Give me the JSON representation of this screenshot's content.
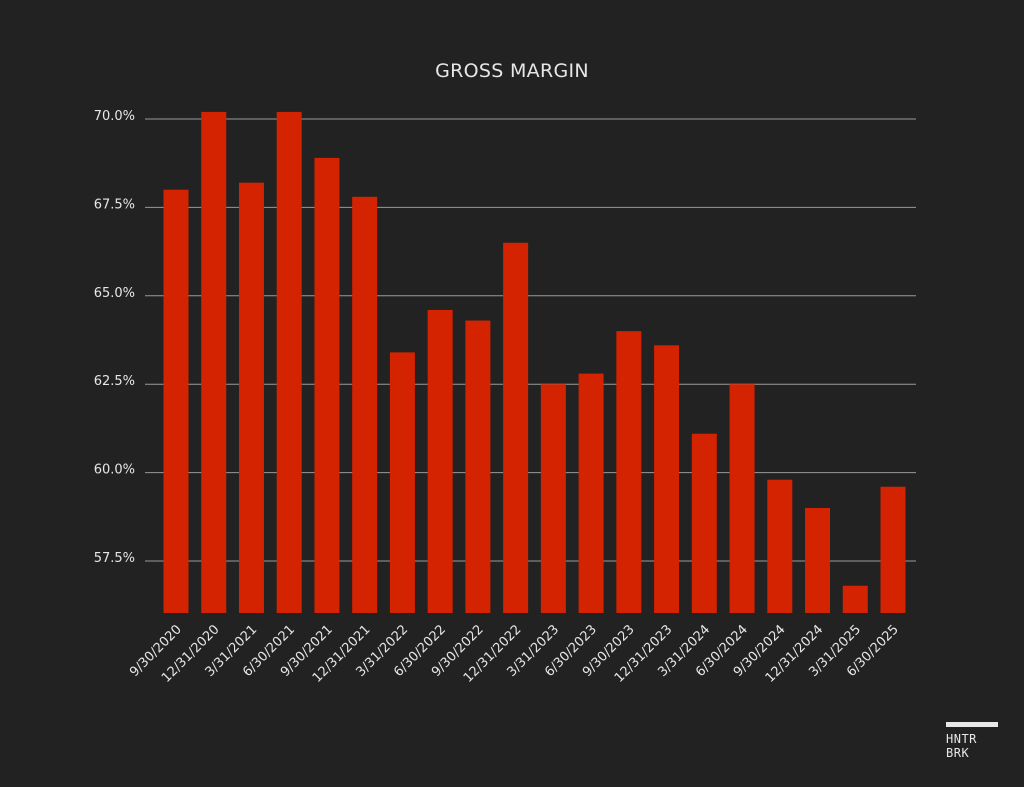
{
  "chart_data": {
    "type": "bar",
    "title": "GROSS MARGIN",
    "xlabel": "",
    "ylabel": "",
    "categories": [
      "9/30/2020",
      "12/31/2020",
      "3/31/2021",
      "6/30/2021",
      "9/30/2021",
      "12/31/2021",
      "3/31/2022",
      "6/30/2022",
      "9/30/2022",
      "12/31/2022",
      "3/31/2023",
      "6/30/2023",
      "9/30/2023",
      "12/31/2023",
      "3/31/2024",
      "6/30/2024",
      "9/30/2024",
      "12/31/2024",
      "3/31/2025",
      "6/30/2025"
    ],
    "values": [
      68.0,
      70.2,
      68.2,
      70.2,
      68.9,
      67.8,
      63.4,
      64.6,
      64.3,
      66.5,
      62.5,
      62.8,
      64.0,
      63.6,
      61.1,
      62.5,
      59.8,
      59.0,
      56.8,
      59.6
    ],
    "ylim": [
      56.0,
      70.0
    ],
    "yticks": [
      57.5,
      60.0,
      62.5,
      65.0,
      67.5,
      70.0
    ],
    "ytick_labels": [
      "57.5%",
      "60.0%",
      "62.5%",
      "65.0%",
      "67.5%",
      "70.0%"
    ],
    "grid": true,
    "legend": "none",
    "bar_color": "#d42300",
    "grid_color": "#9a9a9a",
    "text_color": "#e6e6e6"
  },
  "branding": {
    "line1": "HNTR",
    "line2": "BRK"
  }
}
